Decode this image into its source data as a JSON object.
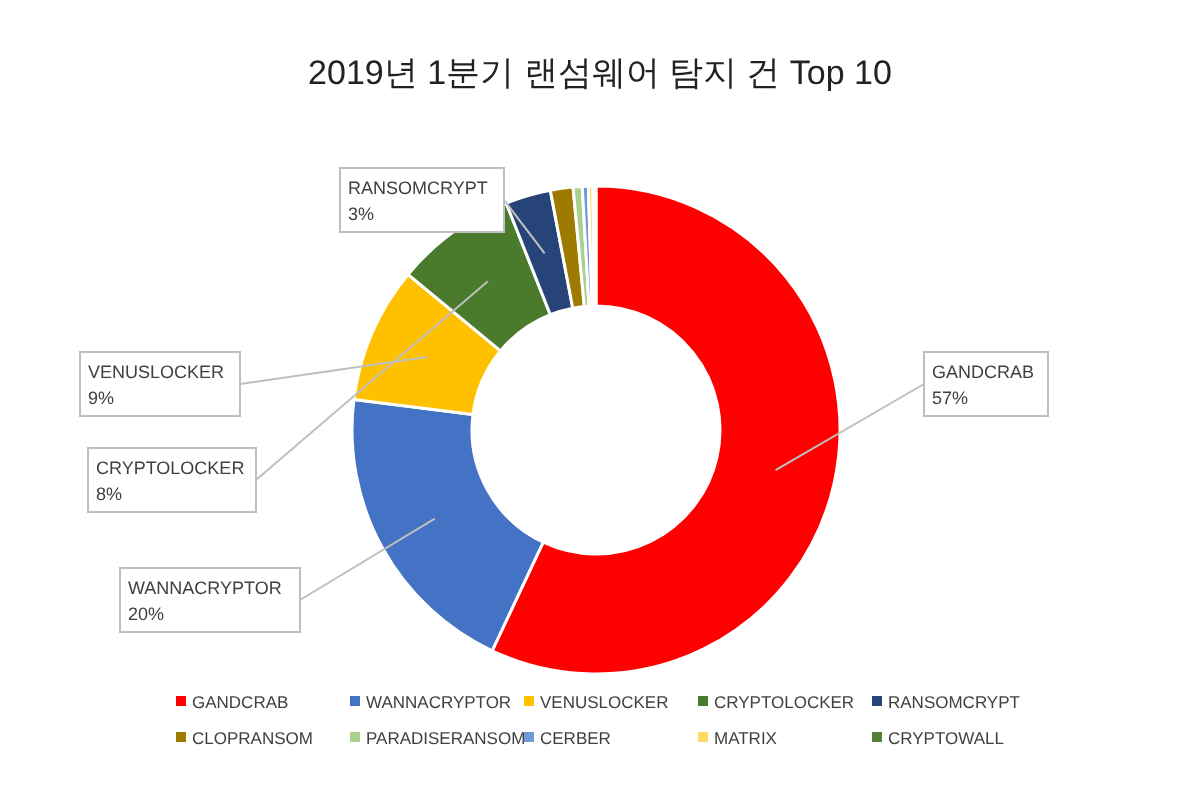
{
  "chart_data": {
    "type": "donut",
    "title": "2019년 1분기 랜섬웨어 탐지 건 Top 10",
    "categories": [
      "GANDCRAB",
      "WANNACRYPTOR",
      "VENUSLOCKER",
      "CRYPTOLOCKER",
      "RANSOMCRYPT",
      "CLOPRANSOM",
      "PARADISERANSOM",
      "CERBER",
      "MATRIX",
      "CRYPTOWALL"
    ],
    "values": [
      57,
      20,
      9,
      8,
      3,
      1.5,
      0.6,
      0.4,
      0.3,
      0.2
    ],
    "value_labels": [
      "57%",
      "20%",
      "9%",
      "8%",
      "3%",
      null,
      null,
      null,
      null,
      null
    ],
    "colors": [
      "#ff0000",
      "#4472c4",
      "#ffc000",
      "#4a7a2c",
      "#264478",
      "#9e7a00",
      "#a9d18e",
      "#6f9ad6",
      "#ffd966",
      "#548235"
    ],
    "legend": "bottom"
  }
}
